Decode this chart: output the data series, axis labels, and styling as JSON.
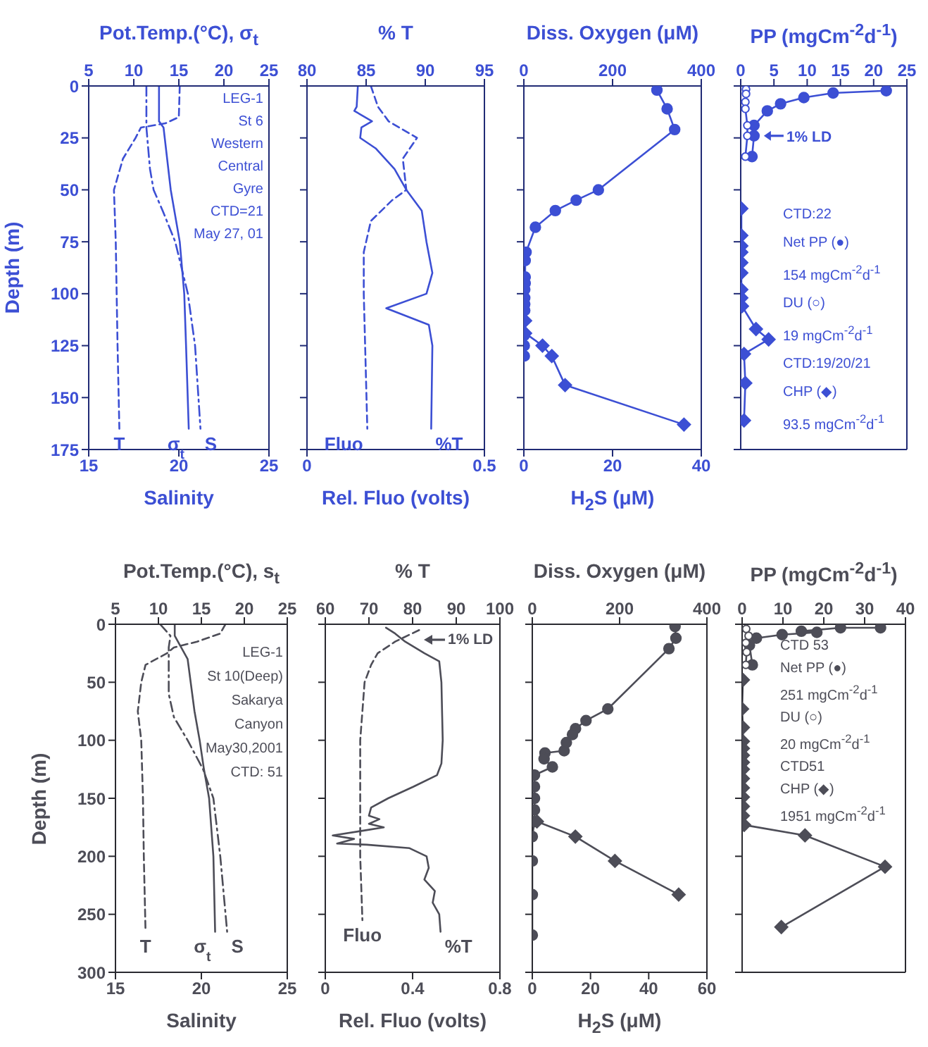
{
  "chart_data": [
    {
      "type": "line",
      "x2label": "Pot.Temp.(°C), σ$_{t}$",
      "xlabel": "Salinity",
      "ylabel": "Depth (m)",
      "x2lim": [
        5,
        25
      ],
      "x2ticks": [
        5,
        10,
        15,
        20,
        25
      ],
      "xlim": [
        15,
        25
      ],
      "xticks": [
        15,
        20,
        25
      ],
      "ylim": [
        175,
        0
      ],
      "yticks": [
        0,
        25,
        50,
        75,
        100,
        125,
        150,
        175
      ],
      "annotations": [
        "LEG-1",
        "St 6",
        "Western",
        "Central",
        "Gyre",
        "CTD=21",
        "May 27, 01"
      ],
      "series": [
        {
          "name": "T",
          "color": "#3c4fd4",
          "axis": "x2",
          "line_style": "dashed",
          "marker": "none",
          "x": [
            15.1,
            15.0,
            13.5,
            10.8,
            10.2,
            8.8,
            7.8,
            8.0,
            8.1,
            8.2,
            8.4
          ],
          "values": [
            0,
            15,
            18,
            20,
            25,
            35,
            50,
            75,
            100,
            125,
            165
          ]
        },
        {
          "name": "σ$_{t}$",
          "color": "#3c4fd4",
          "axis": "x2",
          "line_style": "solid",
          "marker": "none",
          "x": [
            12.8,
            12.8,
            13.3,
            14.1,
            15.1,
            15.6,
            15.8,
            16.1
          ],
          "values": [
            0,
            17,
            20,
            50,
            75,
            100,
            125,
            165
          ]
        },
        {
          "name": "S",
          "color": "#3c4fd4",
          "line_style": "dashdot",
          "marker": "none",
          "x": [
            18.2,
            18.2,
            18.4,
            18.6,
            19.1,
            19.8,
            20.5,
            20.9,
            21.2
          ],
          "values": [
            0,
            20,
            40,
            50,
            60,
            75,
            100,
            125,
            165
          ]
        }
      ]
    },
    {
      "type": "line",
      "x2label": "% T",
      "xlabel": "Rel. Fluo (volts)",
      "x2lim": [
        80,
        95
      ],
      "x2ticks": [
        80,
        85,
        90,
        95
      ],
      "xlim": [
        0,
        0.5
      ],
      "xticks": [
        0,
        0.5
      ],
      "ylim": [
        175,
        0
      ],
      "yticks": [
        0,
        25,
        50,
        75,
        100,
        125,
        150,
        175
      ],
      "tick_labels": "x",
      "series": [
        {
          "name": "%T",
          "color": "#3c4fd4",
          "axis": "x2",
          "line_style": "solid",
          "marker": "none",
          "x": [
            84.3,
            84.2,
            84.0,
            85.5,
            84.6,
            84.5,
            85.8,
            87.4,
            88.4,
            89.7,
            90.1,
            90.6,
            90.1,
            86.7,
            90.3,
            90.6,
            90.5
          ],
          "values": [
            0,
            10,
            12,
            17,
            20,
            25,
            30,
            40,
            50,
            60,
            75,
            90,
            100,
            107,
            115,
            125,
            165
          ]
        },
        {
          "name": "Fluo",
          "color": "#3c4fd4",
          "line_style": "dashed",
          "marker": "none",
          "x": [
            0.18,
            0.2,
            0.23,
            0.31,
            0.27,
            0.28,
            0.24,
            0.18,
            0.16,
            0.16,
            0.17
          ],
          "values": [
            0,
            10,
            17,
            25,
            35,
            50,
            55,
            65,
            80,
            100,
            165
          ]
        }
      ]
    },
    {
      "type": "line",
      "x2label": "Diss. Oxygen (μM)",
      "xlabel": "H$_{2}$S (μM)",
      "x2lim": [
        0,
        400
      ],
      "x2ticks": [
        0,
        200,
        400
      ],
      "xlim": [
        0,
        40
      ],
      "xticks": [
        0,
        20,
        40
      ],
      "ylim": [
        175,
        0
      ],
      "yticks": [
        0,
        25,
        50,
        75,
        100,
        125,
        150,
        175
      ],
      "tick_labels": "x",
      "series": [
        {
          "color": "#3c4fd4",
          "axis": "x2",
          "line_style": "solid",
          "marker": "circle",
          "x": [
            300,
            323,
            340,
            168,
            118,
            71,
            26,
            5,
            3,
            3,
            3,
            2,
            2,
            2,
            2,
            1,
            1,
            1
          ],
          "values": [
            2,
            11,
            21,
            50,
            55,
            60,
            68,
            80,
            84,
            92,
            95,
            98,
            102,
            105,
            108,
            120,
            125,
            130
          ]
        },
        {
          "color": "#3c4fd4",
          "line_style": "solid",
          "marker": "diamond",
          "x": [
            0.3,
            0.3,
            4.2,
            6.3,
            9.3,
            36.1
          ],
          "values": [
            113,
            119,
            125,
            130,
            144,
            163
          ]
        }
      ]
    },
    {
      "type": "line",
      "xlabel": "PP (mgCm$^{-2}$d$^{-1}$)",
      "xlim": [
        0,
        25
      ],
      "xticks": [
        0,
        5,
        10,
        15,
        20,
        25
      ],
      "ylim": [
        175,
        0
      ],
      "yticks": [
        0,
        25,
        50,
        75,
        100,
        125,
        150,
        175
      ],
      "tick_labels": "x",
      "annotations": [
        {
          "text": "1% LD",
          "x": 2.0,
          "y": 24
        },
        "CTD:22",
        "Net PP (●)",
        "154 mgCm$^{-2}$d$^{-1}$",
        "DU (○)",
        "19 mgCm$^{-2}$d$^{-1}$",
        "CTD:19/20/21",
        "CHP (◆)",
        "93.5 mgCm$^{-2}$d$^{-1}$"
      ],
      "series": [
        {
          "color": "#3c4fd4",
          "line_style": "solid",
          "marker": "circle",
          "x": [
            21.9,
            13.9,
            9.5,
            6.0,
            4.0,
            2.0,
            2.0,
            1.7
          ],
          "values": [
            2.3,
            3.4,
            5.6,
            8.6,
            12,
            19,
            24,
            34
          ]
        },
        {
          "color": "#3c4fd4",
          "line_style": "solid",
          "marker": "circle-open",
          "x": [
            0.8,
            0.8,
            0.7,
            0.7,
            1.0,
            1.0,
            0.7
          ],
          "values": [
            1.6,
            3.8,
            7.7,
            11,
            19,
            24,
            34
          ]
        },
        {
          "color": "#3c4fd4",
          "line_style": "solid",
          "marker": "diamond",
          "x": [
            0.1,
            0.1,
            0.1,
            0.1,
            0.1,
            0.1,
            0.1,
            0.1,
            0.2,
            2.3,
            4.2,
            0.5,
            0.7,
            0.5
          ],
          "values": [
            59,
            72,
            77,
            80,
            85,
            90,
            98,
            102,
            106,
            117,
            122,
            129,
            143,
            161
          ]
        }
      ]
    },
    {
      "type": "line",
      "x2label": "Pot.Temp.(°C), s$_{t}$",
      "xlabel": "Salinity",
      "ylabel": "Depth (m)",
      "x2lim": [
        5,
        25
      ],
      "x2ticks": [
        5,
        10,
        15,
        20,
        25
      ],
      "xlim": [
        15,
        25
      ],
      "xticks": [
        15,
        20,
        25
      ],
      "ylim": [
        300,
        0
      ],
      "yticks": [
        0,
        50,
        100,
        150,
        200,
        250,
        300
      ],
      "annotations": [
        "LEG-1",
        "St 10(Deep)",
        "Sakarya",
        "Canyon",
        "May30,2001",
        "CTD: 51"
      ],
      "series": [
        {
          "name": "T",
          "color": "#4d4d57",
          "axis": "x2",
          "line_style": "dashed",
          "marker": "none",
          "x": [
            17.8,
            17.2,
            14.5,
            11.8,
            11.0,
            8.5,
            8.0,
            7.6,
            8.0,
            8.2,
            8.3,
            8.5
          ],
          "values": [
            0,
            8,
            15,
            20,
            25,
            35,
            50,
            75,
            100,
            150,
            200,
            265
          ]
        },
        {
          "name": "σ$_{t}$",
          "color": "#4d4d57",
          "axis": "x2",
          "line_style": "solid",
          "marker": "none",
          "x": [
            11.9,
            11.9,
            13.4,
            14.2,
            14.8,
            15.3,
            15.9,
            16.4,
            16.6
          ],
          "values": [
            0,
            10,
            30,
            75,
            100,
            125,
            150,
            200,
            265
          ]
        },
        {
          "name": "S",
          "color": "#4d4d57",
          "line_style": "dashdot",
          "marker": "none",
          "x": [
            17.6,
            18.2,
            18.1,
            18.1,
            18.4,
            19.2,
            20.1,
            20.7,
            21.1,
            21.5
          ],
          "values": [
            0,
            10,
            20,
            60,
            80,
            100,
            125,
            150,
            200,
            265
          ]
        }
      ]
    },
    {
      "type": "line",
      "x2label": "% T",
      "xlabel": "Rel. Fluo (volts)",
      "x2lim": [
        60,
        100
      ],
      "x2ticks": [
        60,
        70,
        80,
        90,
        100
      ],
      "xlim": [
        0,
        0.8
      ],
      "xticks": [
        0,
        0.4,
        0.8
      ],
      "ylim": [
        300,
        0
      ],
      "yticks": [
        0,
        50,
        100,
        150,
        200,
        250,
        300
      ],
      "tick_labels": "x",
      "annotations": [
        "1% LD"
      ],
      "series": [
        {
          "name": "%T",
          "color": "#4d4d57",
          "axis": "x2",
          "line_style": "solid",
          "marker": "none",
          "x": [
            73.9,
            76.0,
            78.3,
            82.7,
            86.1,
            86.6,
            86.9,
            86.6,
            85.6,
            80.2,
            74.4,
            70.5,
            70.0,
            72.4,
            70.0,
            73.4,
            68.5,
            61.7,
            66.6,
            62.7,
            69.5,
            79.3,
            83.2,
            83.7,
            82.7,
            85.1,
            84.6,
            86.1,
            86.4
          ],
          "values": [
            3,
            8,
            15,
            25,
            32,
            50,
            100,
            120,
            130,
            140,
            150,
            158,
            165,
            168,
            172,
            175,
            178,
            182,
            185,
            189,
            190,
            193,
            200,
            210,
            220,
            230,
            240,
            250,
            265
          ]
        },
        {
          "name": "Fluo",
          "color": "#4d4d57",
          "line_style": "dashed",
          "marker": "none",
          "x": [
            0.43,
            0.32,
            0.24,
            0.21,
            0.18,
            0.17,
            0.16,
            0.16,
            0.17
          ],
          "values": [
            5,
            15,
            25,
            35,
            50,
            75,
            100,
            200,
            255
          ]
        }
      ]
    },
    {
      "type": "line",
      "x2label": "Diss. Oxygen (μM)",
      "xlabel": "H$_{2}$S (μM)",
      "x2lim": [
        0,
        400
      ],
      "x2ticks": [
        0,
        200,
        400
      ],
      "xlim": [
        0,
        60
      ],
      "xticks": [
        0,
        20,
        40,
        60
      ],
      "ylim": [
        300,
        0
      ],
      "yticks": [
        0,
        50,
        100,
        150,
        200,
        250,
        300
      ],
      "tick_labels": "x",
      "series": [
        {
          "color": "#4d4d57",
          "axis": "x2",
          "line_style": "solid",
          "marker": "circle",
          "x": [
            327,
            329,
            313,
            173,
            123,
            99,
            92,
            78,
            73,
            29,
            27,
            46,
            5,
            5,
            5,
            5,
            5,
            0,
            0,
            0,
            0
          ],
          "values": [
            2,
            12,
            21,
            73,
            83,
            90,
            95,
            102,
            109,
            111,
            116,
            123,
            130,
            140,
            150,
            160,
            170,
            183,
            204,
            233,
            268
          ]
        },
        {
          "color": "#4d4d57",
          "line_style": "solid",
          "marker": "diamond",
          "x": [
            1.6,
            14.8,
            28.4,
            50.3
          ],
          "values": [
            170,
            183,
            204,
            233
          ]
        }
      ]
    },
    {
      "type": "line",
      "xlabel": "PP (mgCm$^{-2}$d$^{-1}$)",
      "xlim": [
        0,
        40
      ],
      "xticks": [
        0,
        10,
        20,
        30,
        40
      ],
      "ylim": [
        300,
        0
      ],
      "yticks": [
        0,
        50,
        100,
        150,
        200,
        250,
        300
      ],
      "tick_labels": "x",
      "annotations": [
        "CTD 53",
        "Net PP (●)",
        "251 mgCm$^{-2}$d$^{-1}$",
        "DU (○)",
        "20 mgCm$^{-2}$d$^{-1}$",
        "CTD51",
        "CHP (◆)",
        "1951 mgCm$^{-2}$d$^{-1}$"
      ],
      "series": [
        {
          "color": "#4d4d57",
          "line_style": "solid",
          "marker": "circle",
          "x": [
            33.9,
            24.1,
            14.5,
            18.3,
            9.8,
            3.5,
            1.8,
            2.5
          ],
          "values": [
            3,
            3,
            6,
            7,
            9,
            12,
            18,
            35
          ]
        },
        {
          "color": "#4d4d57",
          "line_style": "solid",
          "marker": "circle-open",
          "x": [
            1.0,
            1.6,
            0.9,
            1.1,
            0.9
          ],
          "values": [
            4,
            10,
            16,
            24,
            35
          ]
        },
        {
          "color": "#4d4d57",
          "line_style": "solid",
          "marker": "diamond",
          "x": [
            0.2,
            0,
            0.2,
            0.2,
            0.2,
            0.2,
            0.2,
            0.2,
            0.2,
            0.2,
            0.2,
            0.2,
            0.2,
            0.5,
            15.4,
            35,
            9.6
          ],
          "values": [
            48,
            73,
            89,
            101,
            107,
            113,
            119,
            125,
            133,
            141,
            149,
            157,
            165,
            173,
            182,
            209,
            261
          ]
        }
      ]
    }
  ]
}
